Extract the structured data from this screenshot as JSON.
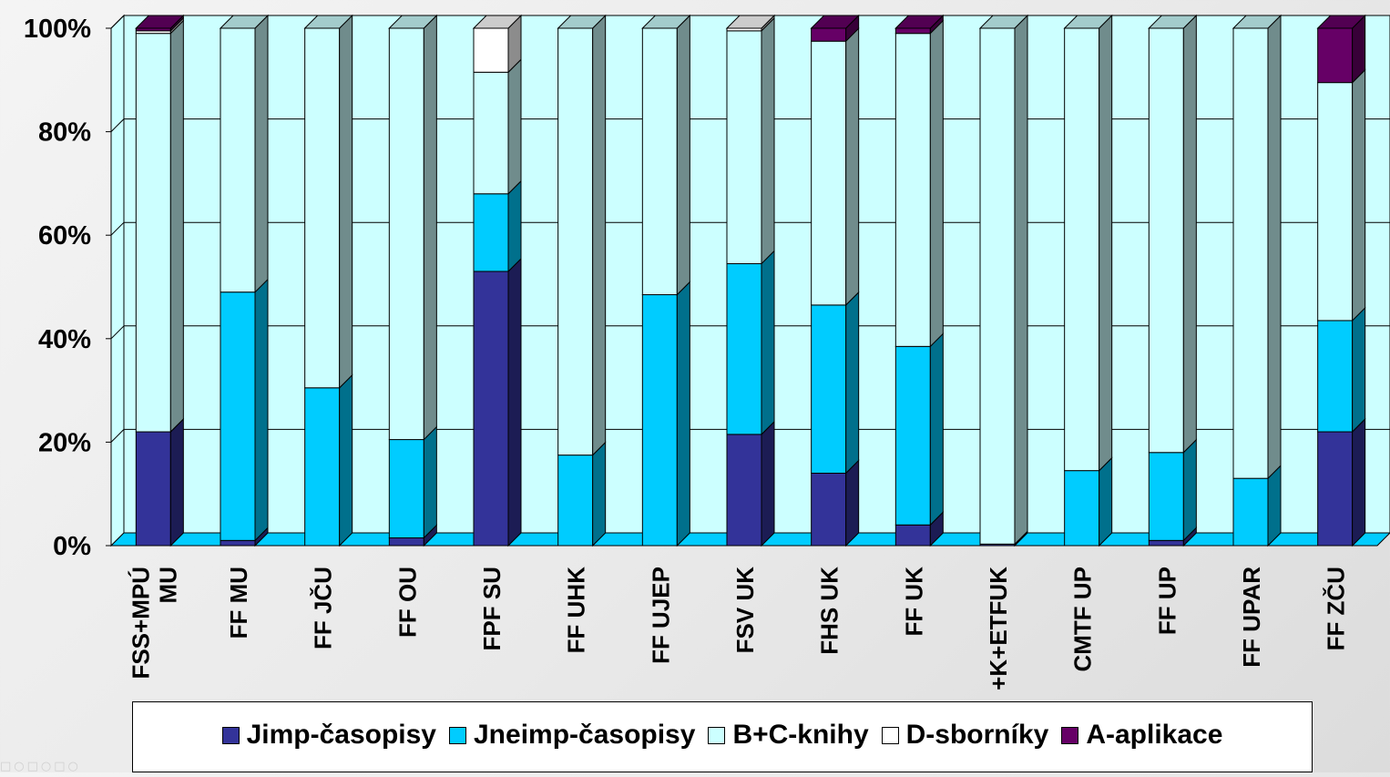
{
  "chart_data": {
    "type": "bar",
    "stacked": "percent",
    "three_d": true,
    "categories": [
      "FSS+MPÚ MU",
      "FF MU",
      "FF JČU",
      "FF OU",
      "FPF SU",
      "FF UHK",
      "FF UJEP",
      "FSV UK",
      "FHS UK",
      "FF UK",
      "+K+ETFUK",
      "CMTF UP",
      "FF UP",
      "FF UPAR",
      "FF ZČU"
    ],
    "series": [
      {
        "name": "Jimp-časopisy",
        "color": "#333399",
        "values": [
          22,
          1,
          0,
          1.5,
          53,
          0,
          0,
          21.5,
          14,
          4,
          0.3,
          0,
          1,
          0,
          22
        ]
      },
      {
        "name": "Jneimp-časopisy",
        "color": "#00ccff",
        "values": [
          0,
          48,
          30.5,
          19,
          15,
          17.5,
          48.5,
          33,
          32.5,
          34.5,
          0,
          14.5,
          17,
          13,
          21.5
        ]
      },
      {
        "name": "B+C-knihy",
        "color": "#ccffff",
        "values": [
          77,
          51,
          69.5,
          79.5,
          23.5,
          82.5,
          51.5,
          45,
          51,
          60.5,
          99.7,
          85.5,
          82,
          87,
          46
        ]
      },
      {
        "name": "D-sborníky",
        "color": "#ffffff",
        "values": [
          0.5,
          0,
          0,
          0,
          8.5,
          0,
          0,
          0.5,
          0,
          0,
          0,
          0,
          0,
          0,
          0
        ]
      },
      {
        "name": "A-aplikace",
        "color": "#660066",
        "values": [
          0.5,
          0,
          0,
          0,
          0,
          0,
          0,
          0,
          2.5,
          1,
          0,
          0,
          0,
          0,
          10.5
        ]
      }
    ],
    "yticks": [
      "0%",
      "20%",
      "40%",
      "60%",
      "80%",
      "100%"
    ],
    "ylim": [
      0,
      100
    ],
    "grid": true,
    "legend_position": "bottom",
    "category_labels": [
      [
        "FSS+MPÚ",
        "MU"
      ],
      [
        "FF MU"
      ],
      [
        "FF JČU"
      ],
      [
        "FF OU"
      ],
      [
        "FPF SU"
      ],
      [
        "FF UHK"
      ],
      [
        "FF UJEP"
      ],
      [
        "FSV UK"
      ],
      [
        "FHS UK"
      ],
      [
        "FF UK"
      ],
      [
        "+K+ETFUK"
      ],
      [
        "CMTF UP"
      ],
      [
        "FF UP"
      ],
      [
        "FF UPAR"
      ],
      [
        "FF ZČU"
      ]
    ]
  },
  "footer": {
    "dots": "□○□○□○"
  }
}
